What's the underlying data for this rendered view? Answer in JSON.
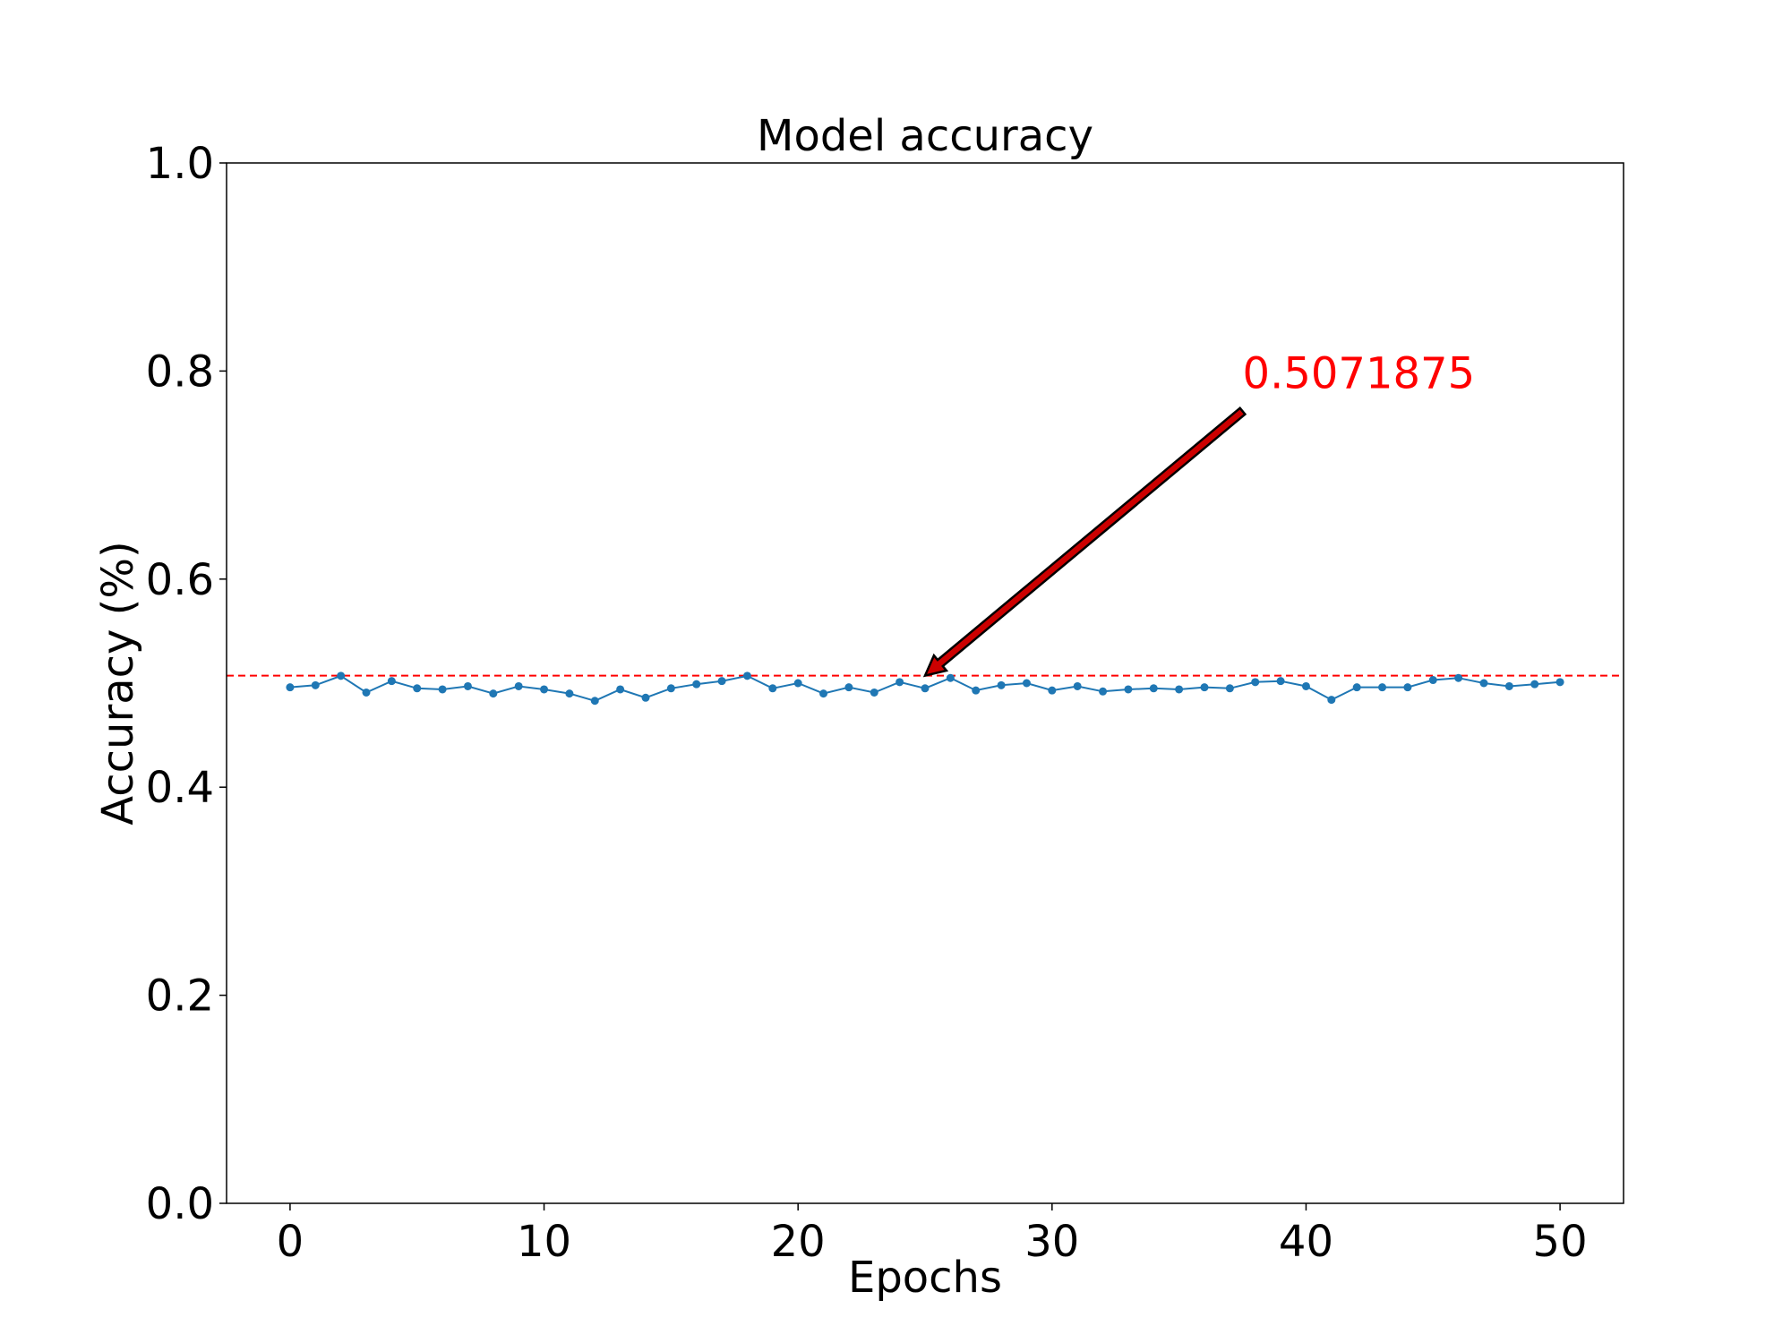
{
  "chart_data": {
    "type": "line",
    "title": "Model accuracy",
    "xlabel": "Epochs",
    "ylabel": "Accuracy (%)",
    "xlim": [
      -2.5,
      52.5
    ],
    "ylim": [
      0.0,
      1.0
    ],
    "x_ticks": [
      0,
      10,
      20,
      30,
      40,
      50
    ],
    "y_ticks": [
      0.0,
      0.2,
      0.4,
      0.6,
      0.8,
      1.0
    ],
    "x_tick_labels": [
      "0",
      "10",
      "20",
      "30",
      "40",
      "50"
    ],
    "y_tick_labels": [
      "0.0",
      "0.2",
      "0.4",
      "0.6",
      "0.8",
      "1.0"
    ],
    "grid": false,
    "series": [
      {
        "color": "#1f77b4",
        "marker": "circle",
        "x": [
          0,
          1,
          2,
          3,
          4,
          5,
          6,
          7,
          8,
          9,
          10,
          11,
          12,
          13,
          14,
          15,
          16,
          17,
          18,
          19,
          20,
          21,
          22,
          23,
          24,
          25,
          26,
          27,
          28,
          29,
          30,
          31,
          32,
          33,
          34,
          35,
          36,
          37,
          38,
          39,
          40,
          41,
          42,
          43,
          44,
          45,
          46,
          47,
          48,
          49,
          50
        ],
        "values": [
          0.496,
          0.498,
          0.507,
          0.491,
          0.502,
          0.495,
          0.494,
          0.497,
          0.49,
          0.497,
          0.494,
          0.49,
          0.483,
          0.494,
          0.486,
          0.495,
          0.499,
          0.502,
          0.507,
          0.495,
          0.5,
          0.49,
          0.496,
          0.491,
          0.501,
          0.495,
          0.505,
          0.493,
          0.498,
          0.5,
          0.493,
          0.497,
          0.492,
          0.494,
          0.495,
          0.494,
          0.496,
          0.495,
          0.501,
          0.502,
          0.497,
          0.484,
          0.496,
          0.496,
          0.496,
          0.503,
          0.505,
          0.5,
          0.497,
          0.499,
          0.501
        ]
      }
    ],
    "reference_line": {
      "y": 0.5071875,
      "color": "#ff0000",
      "style": "dashed"
    },
    "annotation": {
      "text": "0.5071875",
      "color": "#ff0000",
      "arrow_target": [
        25,
        0.5071875
      ],
      "text_anchor": [
        37.5,
        0.77
      ]
    }
  }
}
